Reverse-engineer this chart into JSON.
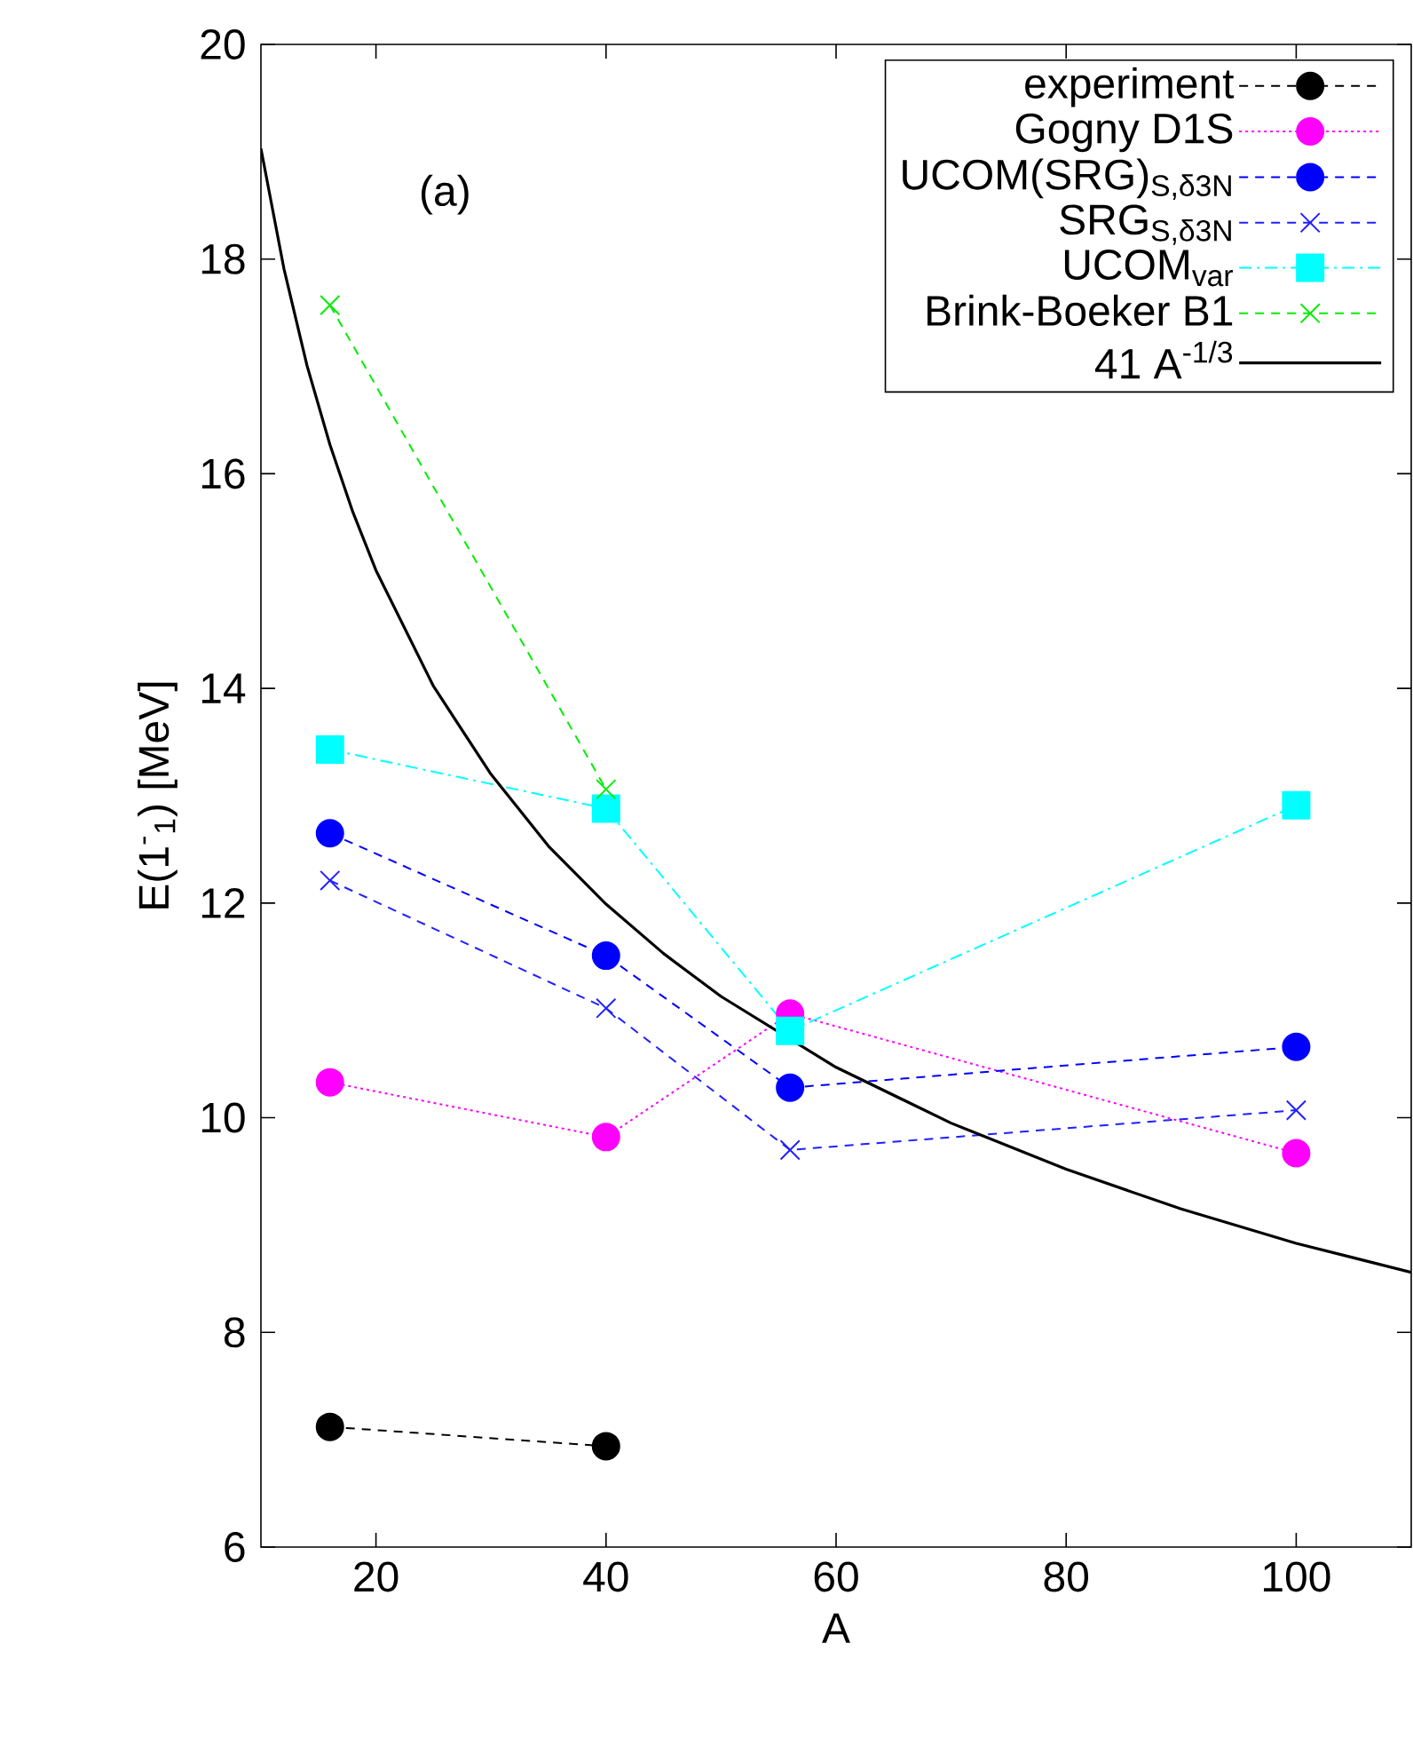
{
  "chart_data": {
    "type": "line",
    "xlabel": "A",
    "ylabel": "E(1$^{-}$$_{1}$) [MeV]",
    "annotations": [
      "(a)"
    ],
    "xlim": [
      10,
      110
    ],
    "xticks": [
      20,
      40,
      60,
      80,
      100
    ],
    "ylim": [
      6,
      20
    ],
    "yticks": [
      6,
      8,
      10,
      12,
      14,
      16,
      18,
      20
    ],
    "legend": "top right",
    "grid": false,
    "series": [
      {
        "name": "experiment",
        "color": "#000000",
        "marker": "circle",
        "line_style": "dashed",
        "x": [
          16,
          40
        ],
        "values": [
          7.12,
          6.94
        ]
      },
      {
        "name": "Gogny D1S",
        "color": "#ff00ff",
        "marker": "circle",
        "line_style": "dotted",
        "x": [
          16,
          40,
          56,
          100
        ],
        "values": [
          10.33,
          9.82,
          10.97,
          9.67
        ]
      },
      {
        "name": "UCOM(SRG)$_{S,δ3N}$",
        "color": "#0000ff",
        "marker": "circle",
        "line_style": "dashed",
        "x": [
          16,
          40,
          56,
          100
        ],
        "values": [
          12.65,
          11.51,
          10.28,
          10.66
        ]
      },
      {
        "name": "SRG$_{S,δ3N}$",
        "color": "#2020ff",
        "marker": "cross",
        "line_style": "dashed",
        "x": [
          16,
          40,
          56,
          100
        ],
        "values": [
          12.21,
          11.02,
          9.7,
          10.07
        ]
      },
      {
        "name": "UCOM$_{var}$",
        "color": "#00ffff",
        "marker": "square",
        "line_style": "dashdot",
        "x": [
          16,
          40,
          56,
          100
        ],
        "values": [
          13.43,
          12.88,
          10.81,
          12.91
        ]
      },
      {
        "name": "Brink-Boeker B1",
        "color": "#00ee00",
        "marker": "cross",
        "line_style": "dashed",
        "x": [
          16,
          40
        ],
        "values": [
          17.57,
          13.06
        ]
      },
      {
        "name": "41 A$^{-1/3}$",
        "color": "#000000",
        "marker": "none",
        "line_style": "solid",
        "x": [
          10,
          12,
          14,
          16,
          18,
          20,
          25,
          30,
          35,
          40,
          45,
          50,
          60,
          70,
          80,
          90,
          100,
          110
        ],
        "values": [
          19.03,
          17.91,
          17.01,
          16.27,
          15.64,
          15.1,
          14.02,
          13.2,
          12.53,
          11.99,
          11.53,
          11.13,
          10.47,
          9.95,
          9.52,
          9.15,
          8.83,
          8.56
        ]
      }
    ]
  }
}
